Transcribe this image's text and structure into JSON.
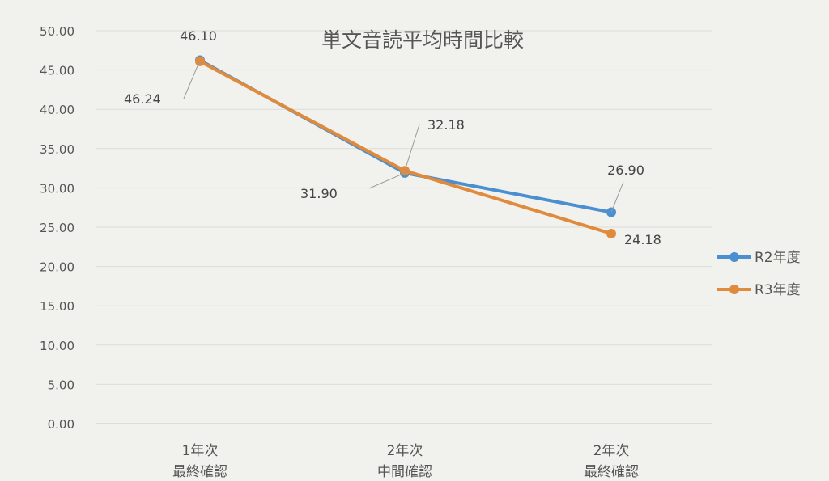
{
  "chart_data": {
    "type": "line",
    "title": "単文音読平均時間比較",
    "categories": [
      [
        "1年次",
        "最終確認"
      ],
      [
        "2年次",
        "中間確認"
      ],
      [
        "2年次",
        "最終確認"
      ]
    ],
    "series": [
      {
        "name": "R2年度",
        "color": "#4a8fd0",
        "values": [
          46.24,
          31.9,
          26.9
        ],
        "labels": [
          "46.24",
          "31.90",
          "26.90"
        ]
      },
      {
        "name": "R3年度",
        "color": "#e08a3c",
        "values": [
          46.1,
          32.18,
          24.18
        ],
        "labels": [
          "46.10",
          "32.18",
          "24.18"
        ]
      }
    ],
    "ylim": [
      0,
      50
    ],
    "y_ticks": [
      "0.00",
      "5.00",
      "10.00",
      "15.00",
      "20.00",
      "25.00",
      "30.00",
      "35.00",
      "40.00",
      "45.00",
      "50.00"
    ],
    "grid": true,
    "legend_position": "right"
  }
}
